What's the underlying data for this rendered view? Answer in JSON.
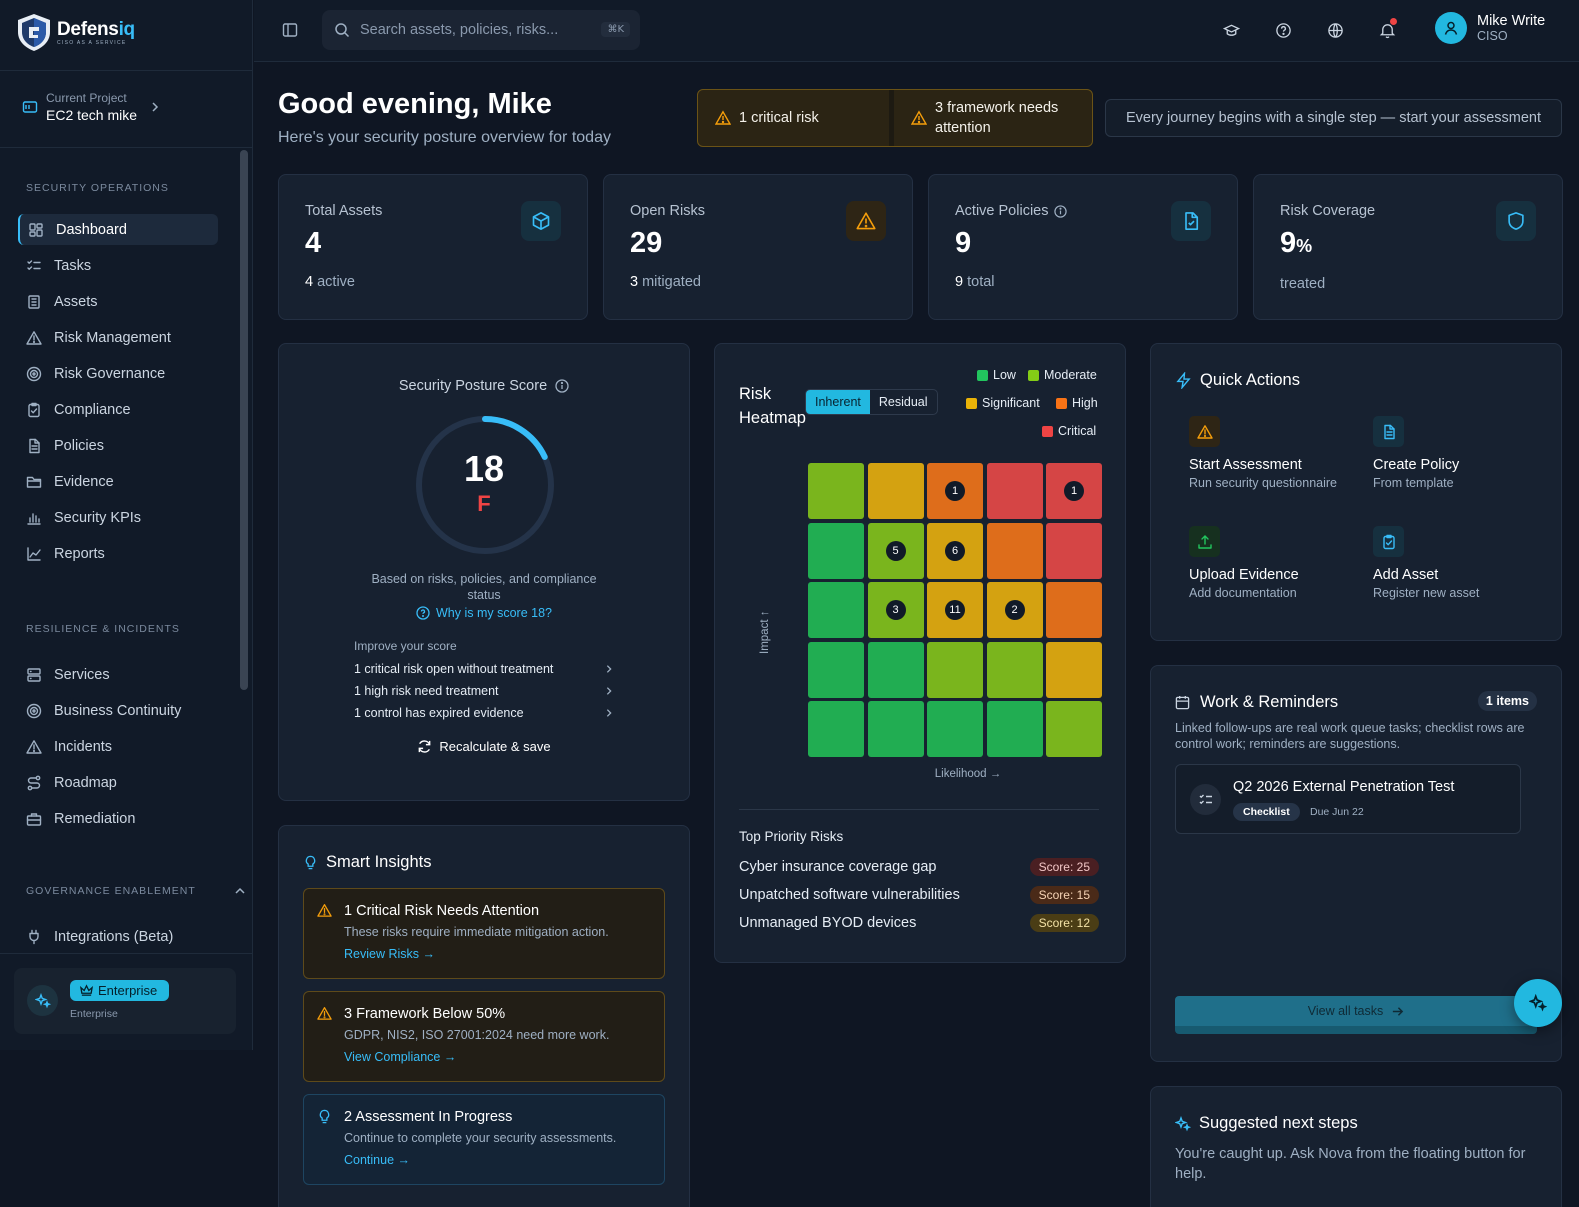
{
  "brand": {
    "name_a": "Defens",
    "name_b": "iq",
    "tagline": "CISO AS A SERVICE"
  },
  "project": {
    "label": "Current Project",
    "value": "EC2 tech mike"
  },
  "sidebar": {
    "section1": "SECURITY OPERATIONS",
    "items1": [
      {
        "label": "Dashboard",
        "icon": "dashboard-icon"
      },
      {
        "label": "Tasks",
        "icon": "tasks-icon"
      },
      {
        "label": "Assets",
        "icon": "assets-icon"
      },
      {
        "label": "Risk Management",
        "icon": "warning-icon"
      },
      {
        "label": "Risk Governance",
        "icon": "target-icon"
      },
      {
        "label": "Compliance",
        "icon": "clipboard-icon"
      },
      {
        "label": "Policies",
        "icon": "document-icon"
      },
      {
        "label": "Evidence",
        "icon": "folder-icon"
      },
      {
        "label": "Security KPIs",
        "icon": "bar-chart-icon"
      },
      {
        "label": "Reports",
        "icon": "line-chart-icon"
      }
    ],
    "section2": "RESILIENCE & INCIDENTS",
    "items2": [
      {
        "label": "Services",
        "icon": "server-icon"
      },
      {
        "label": "Business Continuity",
        "icon": "target-icon"
      },
      {
        "label": "Incidents",
        "icon": "warning-icon"
      },
      {
        "label": "Roadmap",
        "icon": "route-icon"
      },
      {
        "label": "Remediation",
        "icon": "toolbox-icon"
      }
    ],
    "section3": "GOVERNANCE ENABLEMENT",
    "items3": [
      {
        "label": "Integrations (Beta)",
        "icon": "plug-icon"
      }
    ],
    "plan": {
      "badge": "Enterprise",
      "sub": "Enterprise"
    }
  },
  "topbar": {
    "search_placeholder": "Search assets, policies, risks...",
    "shortcut": "⌘K"
  },
  "user": {
    "name": "Mike Write",
    "role": "CISO"
  },
  "header": {
    "greeting": "Good evening, Mike",
    "subtitle": "Here's your security posture overview for today",
    "alert1": "1 critical risk",
    "alert2": "3 framework needs attention",
    "quote": "Every journey begins with a single step — start your assessment"
  },
  "stats": [
    {
      "title": "Total Assets",
      "value": "4",
      "sub_value": "4",
      "sub_text": " active",
      "color": "#38bdf8"
    },
    {
      "title": "Open Risks",
      "value": "29",
      "sub_value": "3",
      "sub_text": " mitigated",
      "color": "#f59e0b"
    },
    {
      "title": "Active Policies",
      "value": "9",
      "sub_value": "9",
      "sub_text": " total",
      "color": "#38bdf8"
    },
    {
      "title": "Risk Coverage",
      "value": "9",
      "unit": "%",
      "sub_value": "",
      "sub_text": "treated",
      "color": "#38bdf8"
    }
  ],
  "posture": {
    "title": "Security Posture Score",
    "score": "18",
    "score_fraction": 0.18,
    "grade": "F",
    "basis": "Based on risks, policies, and compliance status",
    "why": "Why is my score 18?",
    "improve_title": "Improve your score",
    "improve": [
      "1 critical risk open without treatment",
      "1 high risk need treatment",
      "1 control has expired evidence"
    ],
    "recalc": "Recalculate & save"
  },
  "heatmap": {
    "title": "Risk Heatmap",
    "toggle": [
      "Inherent",
      "Residual"
    ],
    "legend": [
      {
        "label": "Low",
        "color": "#22c55e"
      },
      {
        "label": "Moderate",
        "color": "#84cc16"
      },
      {
        "label": "Significant",
        "color": "#eab308"
      },
      {
        "label": "High",
        "color": "#f97316"
      },
      {
        "label": "Critical",
        "color": "#ef4444"
      }
    ],
    "y_label": "Impact ↑",
    "x_label": "Likelihood →",
    "cells": [
      [
        "#7ab51d",
        "#d4a211",
        "#de6d1b",
        "#d54545",
        "#d54545"
      ],
      [
        "#21ad52",
        "#7ab51d",
        "#d4a211",
        "#de6d1b",
        "#d54545"
      ],
      [
        "#21ad52",
        "#7ab51d",
        "#d4a211",
        "#d4a211",
        "#de6d1b"
      ],
      [
        "#21ad52",
        "#21ad52",
        "#7ab51d",
        "#7ab51d",
        "#d4a211"
      ],
      [
        "#21ad52",
        "#21ad52",
        "#21ad52",
        "#21ad52",
        "#7ab51d"
      ]
    ],
    "counts": [
      [
        "",
        "",
        "1",
        "",
        "1"
      ],
      [
        "",
        "5",
        "6",
        "",
        ""
      ],
      [
        "",
        "3",
        "11",
        "2",
        ""
      ],
      [
        "",
        "",
        "",
        "",
        ""
      ],
      [
        "",
        "",
        "",
        "",
        ""
      ]
    ],
    "top_title": "Top Priority Risks",
    "top": [
      {
        "name": "Cyber insurance coverage gap",
        "score": "Score: 25",
        "bg": "#4a1f22",
        "fg": "#f3c7c7"
      },
      {
        "name": "Unpatched software vulnerabilities",
        "score": "Score: 15",
        "bg": "#4a2a18",
        "fg": "#f6d3b5"
      },
      {
        "name": "Unmanaged BYOD devices",
        "score": "Score: 12",
        "bg": "#4a3d15",
        "fg": "#f3e2a6"
      }
    ]
  },
  "quick_actions": {
    "title": "Quick Actions",
    "items": [
      {
        "name": "Start Assessment",
        "desc": "Run security questionnaire",
        "color": "#f59e0b",
        "bg": "#2e2515",
        "icon": "warning-icon"
      },
      {
        "name": "Create Policy",
        "desc": "From template",
        "color": "#38bdf8",
        "bg": "#16303f",
        "icon": "document-icon"
      },
      {
        "name": "Upload Evidence",
        "desc": "Add documentation",
        "color": "#22c55e",
        "bg": "#16301f",
        "icon": "upload-icon"
      },
      {
        "name": "Add Asset",
        "desc": "Register new asset",
        "color": "#38bdf8",
        "bg": "#16303f",
        "icon": "clipboard-icon"
      }
    ]
  },
  "work": {
    "title": "Work & Reminders",
    "count": "1 items",
    "desc": "Linked follow-ups are real work queue tasks; checklist rows are control work; reminders are suggestions.",
    "task": {
      "name": "Q2 2026 External Penetration Test",
      "tag": "Checklist",
      "due": "Due Jun 22"
    },
    "view_all": "View all tasks"
  },
  "next_steps": {
    "title": "Suggested next steps",
    "text": "You're caught up. Ask Nova from the floating button for help."
  },
  "insights": {
    "title": "Smart Insights",
    "items": [
      {
        "name": "1 Critical Risk Needs Attention",
        "desc": "These risks require immediate mitigation action.",
        "link": "Review Risks →",
        "kind": "warn"
      },
      {
        "name": "3 Framework Below 50%",
        "desc": "GDPR, NIS2, ISO 27001:2024 need more work.",
        "link": "View Compliance →",
        "kind": "warn"
      },
      {
        "name": "2 Assessment In Progress",
        "desc": "Continue to complete your security assessments.",
        "link": "Continue →",
        "kind": "info"
      }
    ]
  }
}
